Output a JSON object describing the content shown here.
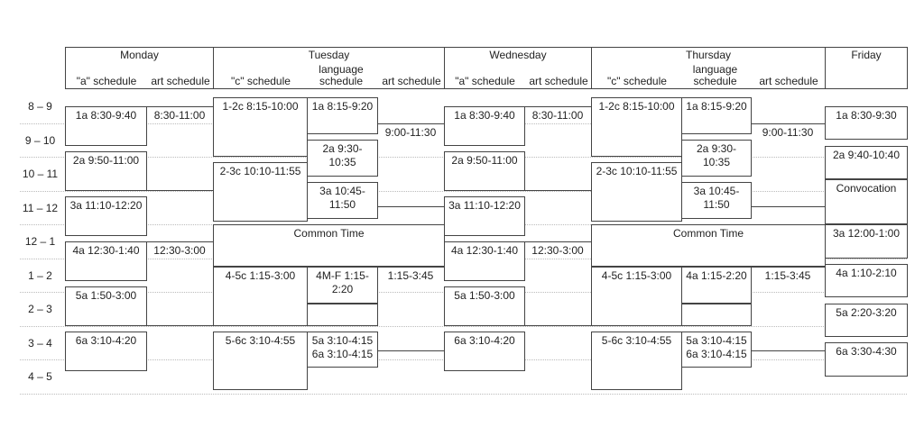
{
  "hours": [
    "8 – 9",
    "9 – 10",
    "10 – 11",
    "11 – 12",
    "12 – 1",
    "1 – 2",
    "2 – 3",
    "3 – 4",
    "4 – 5"
  ],
  "days": [
    {
      "name": "Monday",
      "subs": [
        "\"a\" schedule",
        "art schedule"
      ]
    },
    {
      "name": "Tuesday",
      "subs": [
        "\"c\" schedule",
        "language schedule",
        "art schedule"
      ]
    },
    {
      "name": "Wednesday",
      "subs": [
        "\"a\" schedule",
        "art schedule"
      ]
    },
    {
      "name": "Thursday",
      "subs": [
        "\"c\" schedule",
        "language schedule",
        "art schedule"
      ]
    },
    {
      "name": "Friday",
      "subs": []
    }
  ],
  "columns": [
    {
      "blocks": [
        {
          "label": "1a 8:30-9:40",
          "start": "8:30",
          "end": "9:40"
        },
        {
          "label": "2a 9:50-11:00",
          "start": "9:50",
          "end": "11:00"
        },
        {
          "label": "3a 11:10-12:20",
          "start": "11:10",
          "end": "12:20"
        },
        {
          "label": "4a 12:30-1:40",
          "start": "12:30",
          "end": "1:40"
        },
        {
          "label": "5a 1:50-3:00",
          "start": "1:50",
          "end": "3:00"
        },
        {
          "label": "6a 3:10-4:20",
          "start": "3:10",
          "end": "4:20"
        }
      ]
    },
    {
      "art": true,
      "blocks": [
        {
          "label": "8:30-11:00",
          "start": "8:30",
          "end": "11:00"
        },
        {
          "label": "12:30-3:00",
          "start": "12:30",
          "end": "3:00"
        }
      ]
    },
    {
      "blocks": [
        {
          "label": "1-2c 8:15-10:00",
          "start": "8:15",
          "end": "10:00"
        },
        {
          "label": "2-3c 10:10-11:55",
          "start": "10:10",
          "end": "11:55"
        },
        {
          "label": "4-5c 1:15-3:00",
          "start": "1:15",
          "end": "3:00"
        },
        {
          "label": "5-6c 3:10-4:55",
          "start": "3:10",
          "end": "4:55"
        }
      ]
    },
    {
      "blocks": [
        {
          "label": "1a 8:15-9:20",
          "start": "8:15",
          "end": "9:20"
        },
        {
          "label": "2a 9:30-10:35",
          "start": "9:30",
          "end": "10:35"
        },
        {
          "label": "3a 10:45-11:50",
          "start": "10:45",
          "end": "11:50"
        },
        {
          "label": "4M-F 1:15-2:20",
          "start": "1:15",
          "end": "2:20"
        },
        {
          "label": "",
          "start": "2:20",
          "end": "3:00"
        },
        {
          "label": "5a 3:10-4:15 6a 3:10-4:15",
          "start": "3:10",
          "end": "4:15"
        }
      ]
    },
    {
      "art": true,
      "blocks": [
        {
          "label": "9:00-11:30",
          "start": "9:00",
          "end": "11:30"
        },
        {
          "label": "1:15-3:45",
          "start": "1:15",
          "end": "3:45"
        }
      ]
    },
    {
      "blocks": [
        {
          "label": "1a 8:30-9:40",
          "start": "8:30",
          "end": "9:40"
        },
        {
          "label": "2a 9:50-11:00",
          "start": "9:50",
          "end": "11:00"
        },
        {
          "label": "3a 11:10-12:20",
          "start": "11:10",
          "end": "12:20"
        },
        {
          "label": "4a 12:30-1:40",
          "start": "12:30",
          "end": "1:40"
        },
        {
          "label": "5a 1:50-3:00",
          "start": "1:50",
          "end": "3:00"
        },
        {
          "label": "6a 3:10-4:20",
          "start": "3:10",
          "end": "4:20"
        }
      ]
    },
    {
      "art": true,
      "blocks": [
        {
          "label": "8:30-11:00",
          "start": "8:30",
          "end": "11:00"
        },
        {
          "label": "12:30-3:00",
          "start": "12:30",
          "end": "3:00"
        }
      ]
    },
    {
      "blocks": [
        {
          "label": "1-2c 8:15-10:00",
          "start": "8:15",
          "end": "10:00"
        },
        {
          "label": "2-3c 10:10-11:55",
          "start": "10:10",
          "end": "11:55"
        },
        {
          "label": "4-5c 1:15-3:00",
          "start": "1:15",
          "end": "3:00"
        },
        {
          "label": "5-6c 3:10-4:55",
          "start": "3:10",
          "end": "4:55"
        }
      ]
    },
    {
      "blocks": [
        {
          "label": "1a 8:15-9:20",
          "start": "8:15",
          "end": "9:20"
        },
        {
          "label": "2a 9:30-10:35",
          "start": "9:30",
          "end": "10:35"
        },
        {
          "label": "3a 10:45-11:50",
          "start": "10:45",
          "end": "11:50"
        },
        {
          "label": "4a 1:15-2:20",
          "start": "1:15",
          "end": "2:20"
        },
        {
          "label": "",
          "start": "2:20",
          "end": "3:00"
        },
        {
          "label": "5a 3:10-4:15 6a 3:10-4:15",
          "start": "3:10",
          "end": "4:15"
        }
      ]
    },
    {
      "art": true,
      "blocks": [
        {
          "label": "9:00-11:30",
          "start": "9:00",
          "end": "11:30"
        },
        {
          "label": "1:15-3:45",
          "start": "1:15",
          "end": "3:45"
        }
      ]
    },
    {
      "blocks": [
        {
          "label": "1a 8:30-9:30",
          "start": "8:30",
          "end": "9:30"
        },
        {
          "label": "2a 9:40-10:40",
          "start": "9:40",
          "end": "10:40"
        },
        {
          "label": "Convocation",
          "start": "10:40",
          "end": "12:00"
        },
        {
          "label": "3a 12:00-1:00",
          "start": "12:00",
          "end": "1:00"
        },
        {
          "label": "4a 1:10-2:10",
          "start": "1:10",
          "end": "2:10"
        },
        {
          "label": "5a 2:20-3:20",
          "start": "2:20",
          "end": "3:20"
        },
        {
          "label": "6a 3:30-4:30",
          "start": "3:30",
          "end": "4:30"
        }
      ]
    }
  ],
  "spans": [
    {
      "label": "Common Time",
      "start": "12:00",
      "end": "1:15",
      "from_col": 2,
      "to_col": 4
    },
    {
      "label": "Common Time",
      "start": "12:00",
      "end": "1:15",
      "from_col": 7,
      "to_col": 9
    }
  ]
}
